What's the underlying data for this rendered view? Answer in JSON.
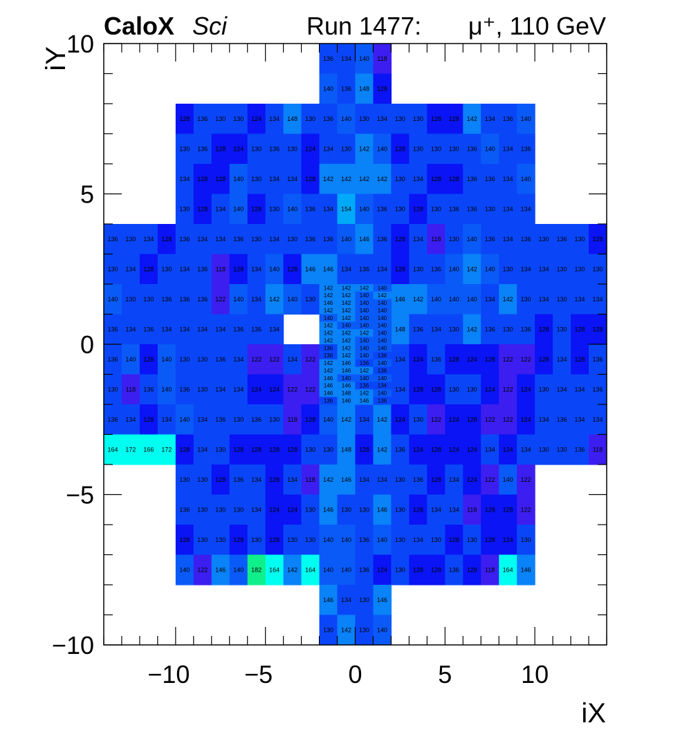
{
  "header": {
    "experiment": "CaloX",
    "detector": "Sci",
    "run_label": "Run 1477:",
    "particle": "μ⁺, 110 GeV"
  },
  "chart_data": {
    "type": "heatmap",
    "xlabel": "iX",
    "ylabel": "iY",
    "xlim": [
      -14,
      14
    ],
    "ylim": [
      -10,
      10
    ],
    "x_ticks": [
      "−10",
      "−5",
      "0",
      "5",
      "10"
    ],
    "y_ticks": [
      "−10",
      "−5",
      "0",
      "5",
      "10"
    ],
    "color_scale": [
      {
        "value": 118,
        "color": "#3c1ef0"
      },
      {
        "value": 124,
        "color": "#0a14f5"
      },
      {
        "value": 130,
        "color": "#0a46f8"
      },
      {
        "value": 138,
        "color": "#0a5af8"
      },
      {
        "value": 144,
        "color": "#0a82f8"
      },
      {
        "value": 152,
        "color": "#00aaf8"
      },
      {
        "value": 162,
        "color": "#00e6f8"
      },
      {
        "value": 172,
        "color": "#00fff0"
      },
      {
        "value": 182,
        "color": "#10f08a"
      }
    ],
    "cell_colors": {
      "154": "#00aaf8",
      "146": "#0a82f8",
      "148": "#0a82f8",
      "142": "#0a82f8",
      "182": "#10f08a",
      "164": "#00fff0",
      "166": "#00fff0",
      "172": "#00fff0"
    },
    "rows": [
      {
        "y": 9.5,
        "x0": -2,
        "values": [
          136,
          134,
          140,
          118
        ]
      },
      {
        "y": 8.5,
        "x0": -2,
        "values": [
          140,
          136,
          148,
          128
        ]
      },
      {
        "y": 7.5,
        "x0": -10,
        "values": [
          128,
          136,
          130,
          130,
          124,
          134,
          148,
          130,
          136,
          140,
          130,
          134,
          130,
          130,
          128,
          128,
          142,
          134,
          136,
          140
        ]
      },
      {
        "y": 6.5,
        "x0": -10,
        "values": [
          130,
          136,
          128,
          124,
          130,
          136,
          130,
          124,
          134,
          130,
          142,
          140,
          128,
          130,
          130,
          130,
          136,
          140,
          134,
          136
        ]
      },
      {
        "y": 5.5,
        "x0": -10,
        "values": [
          134,
          128,
          128,
          140,
          130,
          134,
          134,
          128,
          142,
          142,
          142,
          142,
          130,
          134,
          128,
          128,
          136,
          136,
          134,
          140
        ]
      },
      {
        "y": 4.5,
        "x0": -10,
        "values": [
          130,
          128,
          134,
          140,
          128,
          130,
          140,
          136,
          134,
          154,
          140,
          136,
          130,
          128,
          130,
          136,
          136,
          130,
          134,
          134
        ]
      },
      {
        "y": 3.5,
        "x0": -14,
        "values": [
          136,
          130,
          134,
          128,
          136,
          134,
          134,
          136,
          130,
          134,
          130,
          136,
          136,
          140,
          146,
          136,
          128,
          134,
          118,
          130,
          140,
          136,
          134,
          136,
          130,
          136,
          130,
          128
        ]
      },
      {
        "y": 2.5,
        "x0": -14,
        "values": [
          130,
          134,
          128,
          130,
          134,
          136,
          118,
          128,
          134,
          140,
          128,
          146,
          146,
          134,
          136,
          134,
          128,
          130,
          136,
          140,
          142,
          140,
          130,
          134,
          134,
          130,
          130,
          130
        ]
      },
      {
        "y": 1.5,
        "x0": -14,
        "values": [
          140,
          130,
          130,
          136,
          136,
          136,
          122,
          140,
          134,
          142,
          140,
          130,
          null,
          null,
          null,
          null,
          146,
          142,
          140,
          140,
          140,
          134,
          142,
          130,
          134,
          130,
          134,
          134
        ]
      },
      {
        "y": 0.5,
        "x0": -14,
        "values": [
          136,
          134,
          136,
          134,
          134,
          134,
          134,
          136,
          136,
          134,
          null,
          null,
          null,
          null,
          null,
          null,
          148,
          136,
          134,
          130,
          142,
          136,
          130,
          136,
          128,
          130,
          128,
          128
        ]
      },
      {
        "y": -0.5,
        "x0": -14,
        "values": [
          136,
          140,
          128,
          140,
          130,
          130,
          136,
          134,
          122,
          122,
          134,
          122,
          null,
          null,
          null,
          null,
          134,
          124,
          136,
          128,
          124,
          128,
          122,
          122,
          128,
          134,
          128,
          136
        ]
      },
      {
        "y": -1.5,
        "x0": -14,
        "values": [
          130,
          118,
          136,
          140,
          136,
          130,
          134,
          134,
          124,
          124,
          122,
          122,
          null,
          null,
          null,
          null,
          134,
          128,
          128,
          130,
          130,
          124,
          122,
          124,
          130,
          134,
          134,
          136
        ]
      },
      {
        "y": -2.5,
        "x0": -14,
        "values": [
          136,
          134,
          128,
          134,
          140,
          134,
          136,
          130,
          136,
          130,
          118,
          128,
          140,
          142,
          134,
          142,
          124,
          130,
          122,
          124,
          128,
          122,
          122,
          124,
          134,
          136,
          134,
          134
        ]
      },
      {
        "y": -3.5,
        "x0": -14,
        "values": [
          164,
          172,
          166,
          172,
          128,
          134,
          130,
          128,
          128,
          128,
          128,
          130,
          130,
          148,
          128,
          142,
          136,
          124,
          128,
          124,
          124,
          134,
          124,
          134,
          130,
          130,
          136,
          118
        ]
      },
      {
        "y": -4.5,
        "x0": -10,
        "values": [
          130,
          130,
          128,
          136,
          134,
          128,
          134,
          118,
          142,
          146,
          134,
          134,
          130,
          136,
          128,
          134,
          124,
          122,
          140,
          122
        ]
      },
      {
        "y": -5.5,
        "x0": -10,
        "values": [
          136,
          130,
          130,
          130,
          134,
          124,
          124,
          130,
          146,
          130,
          130,
          146,
          130,
          128,
          134,
          134,
          118,
          128,
          128,
          122
        ]
      },
      {
        "y": -6.5,
        "x0": -10,
        "values": [
          128,
          130,
          130,
          128,
          130,
          128,
          130,
          130,
          140,
          140,
          136,
          140,
          130,
          134,
          130,
          128,
          130,
          128,
          124,
          130
        ]
      },
      {
        "y": -7.5,
        "x0": -10,
        "values": [
          140,
          122,
          146,
          140,
          182,
          164,
          142,
          164,
          140,
          140,
          136,
          124,
          130,
          128,
          128,
          136,
          128,
          118,
          164,
          146
        ]
      },
      {
        "y": -8.5,
        "x0": -2,
        "values": [
          146,
          134,
          130,
          146
        ]
      },
      {
        "y": -9.5,
        "x0": -2,
        "values": [
          130,
          142,
          130,
          140
        ]
      }
    ],
    "center_cells": [
      {
        "y": 1.875,
        "values": [
          142,
          142,
          142,
          140
        ]
      },
      {
        "y": 1.625,
        "values": [
          142,
          142,
          140,
          142
        ]
      },
      {
        "y": 1.375,
        "values": [
          146,
          142,
          140,
          140
        ]
      },
      {
        "y": 1.125,
        "values": [
          142,
          142,
          140,
          140
        ]
      },
      {
        "y": 0.875,
        "values": [
          140,
          142,
          140,
          140
        ]
      },
      {
        "y": 0.625,
        "values": [
          142,
          140,
          140,
          140
        ]
      },
      {
        "y": 0.375,
        "values": [
          142,
          142,
          142,
          140
        ]
      },
      {
        "y": 0.125,
        "values": [
          142,
          142,
          140,
          140
        ]
      },
      {
        "y": -0.125,
        "values": [
          136,
          142,
          140,
          140
        ]
      },
      {
        "y": -0.375,
        "values": [
          136,
          142,
          140,
          136
        ]
      },
      {
        "y": -0.625,
        "values": [
          142,
          146,
          136,
          140
        ]
      },
      {
        "y": -0.875,
        "values": [
          142,
          146,
          142,
          136
        ]
      },
      {
        "y": -1.125,
        "values": [
          146,
          140,
          140,
          140
        ]
      },
      {
        "y": -1.375,
        "values": [
          146,
          146,
          136,
          134
        ]
      },
      {
        "y": -1.625,
        "values": [
          146,
          148,
          142,
          140
        ]
      },
      {
        "y": -1.875,
        "values": [
          136,
          146,
          146,
          136
        ]
      }
    ]
  }
}
